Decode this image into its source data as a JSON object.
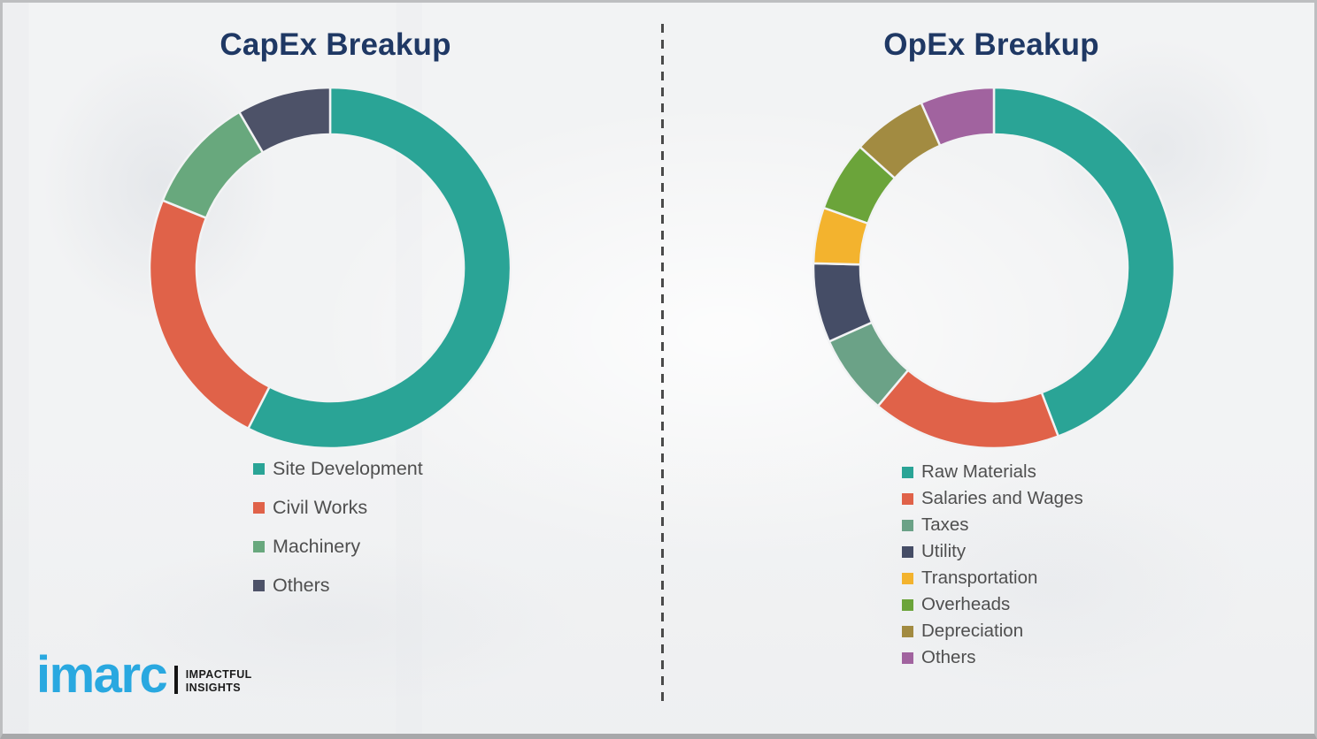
{
  "theme": {
    "background": "#F2F3F4",
    "title_color": "#1F3864",
    "legend_text_color": "#4F4F4F",
    "divider_color": "#4A4A4A",
    "logo_color": "#29A8E0"
  },
  "chart_data": [
    {
      "type": "donut",
      "title": "CapEx Breakup",
      "values_are_estimated_percent": true,
      "start_angle_deg": 0,
      "direction": "clockwise",
      "legend_position": "below",
      "series": [
        {
          "label": "Site Development",
          "value": 57.5,
          "color": "#2AA496"
        },
        {
          "label": "Civil Works",
          "value": 23.6,
          "color": "#E06249"
        },
        {
          "label": "Machinery",
          "value": 10.5,
          "color": "#68A87D"
        },
        {
          "label": "Others",
          "value": 8.4,
          "color": "#4D5268"
        }
      ]
    },
    {
      "type": "donut",
      "title": "OpEx Breakup",
      "values_are_estimated_percent": true,
      "start_angle_deg": 0,
      "direction": "clockwise",
      "legend_position": "below",
      "series": [
        {
          "label": "Raw Materials",
          "value": 44.2,
          "color": "#2AA496"
        },
        {
          "label": "Salaries and Wages",
          "value": 16.9,
          "color": "#E06249"
        },
        {
          "label": "Taxes",
          "value": 7.2,
          "color": "#6BA287"
        },
        {
          "label": "Utility",
          "value": 7.1,
          "color": "#454D66"
        },
        {
          "label": "Transportation",
          "value": 5.0,
          "color": "#F3B32E"
        },
        {
          "label": "Overheads",
          "value": 6.3,
          "color": "#6BA43A"
        },
        {
          "label": "Depreciation",
          "value": 6.7,
          "color": "#A28B41"
        },
        {
          "label": "Others",
          "value": 6.6,
          "color": "#A1639F"
        }
      ]
    }
  ],
  "branding": {
    "logo_text": "imarc",
    "tagline": [
      "IMPACTFUL",
      "INSIGHTS"
    ]
  }
}
